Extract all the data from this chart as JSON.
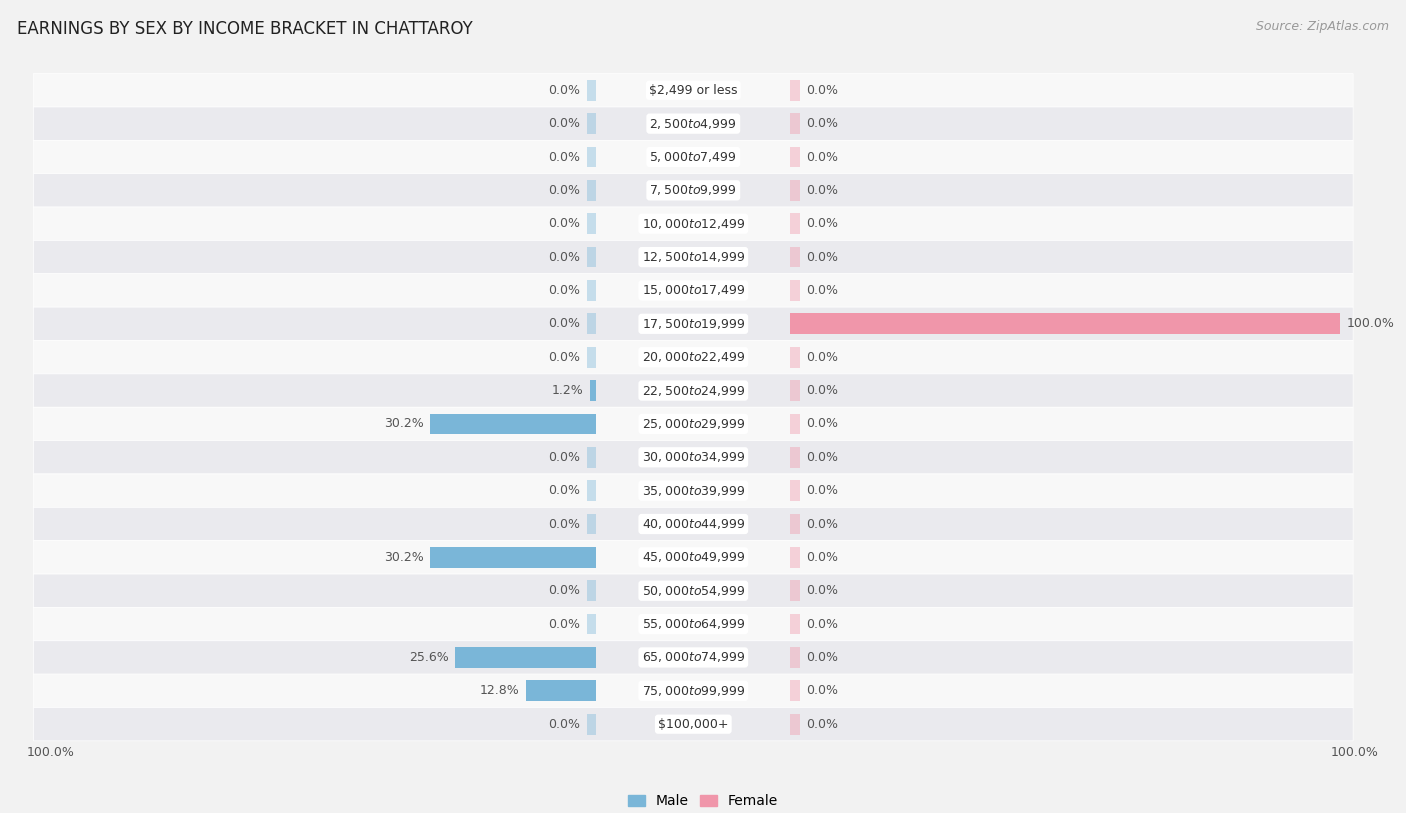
{
  "title": "EARNINGS BY SEX BY INCOME BRACKET IN CHATTAROY",
  "source": "Source: ZipAtlas.com",
  "categories": [
    "$2,499 or less",
    "$2,500 to $4,999",
    "$5,000 to $7,499",
    "$7,500 to $9,999",
    "$10,000 to $12,499",
    "$12,500 to $14,999",
    "$15,000 to $17,499",
    "$17,500 to $19,999",
    "$20,000 to $22,499",
    "$22,500 to $24,999",
    "$25,000 to $29,999",
    "$30,000 to $34,999",
    "$35,000 to $39,999",
    "$40,000 to $44,999",
    "$45,000 to $49,999",
    "$50,000 to $54,999",
    "$55,000 to $64,999",
    "$65,000 to $74,999",
    "$75,000 to $99,999",
    "$100,000+"
  ],
  "male_values": [
    0.0,
    0.0,
    0.0,
    0.0,
    0.0,
    0.0,
    0.0,
    0.0,
    0.0,
    1.2,
    30.2,
    0.0,
    0.0,
    0.0,
    30.2,
    0.0,
    0.0,
    25.6,
    12.8,
    0.0
  ],
  "female_values": [
    0.0,
    0.0,
    0.0,
    0.0,
    0.0,
    0.0,
    0.0,
    100.0,
    0.0,
    0.0,
    0.0,
    0.0,
    0.0,
    0.0,
    0.0,
    0.0,
    0.0,
    0.0,
    0.0,
    0.0
  ],
  "male_color": "#7ab6d8",
  "female_color": "#f096aa",
  "background_color": "#f2f2f2",
  "row_light": "#f8f8f8",
  "row_dark": "#eaeaee",
  "max_value": 100.0,
  "label_color": "#555555",
  "title_fontsize": 12,
  "source_fontsize": 9,
  "label_fontsize": 9,
  "category_fontsize": 9,
  "legend_fontsize": 10
}
